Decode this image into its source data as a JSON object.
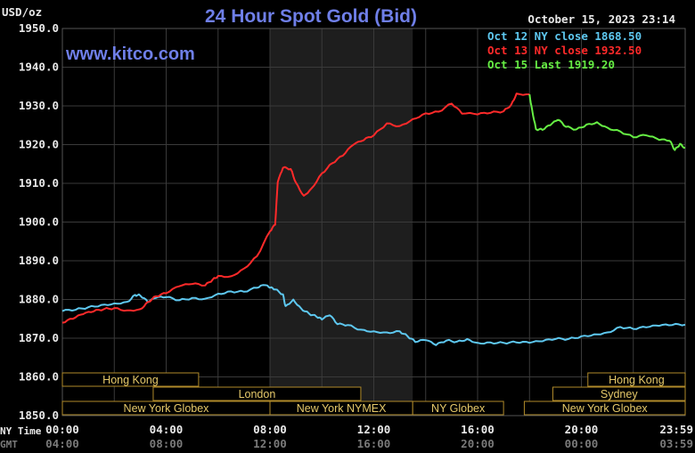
{
  "header": {
    "title": "24 Hour Spot Gold (Bid)",
    "unit": "USD/oz",
    "website": "www.kitco.com",
    "date": "October 15, 2023 23:14"
  },
  "legend": [
    {
      "text": "Oct 12 NY close 1868.50",
      "color": "#5ec8f0"
    },
    {
      "text": "Oct 13 NY close 1932.50",
      "color": "#ff2a2a"
    },
    {
      "text": "Oct 15 Last 1919.20",
      "color": "#66ee44"
    }
  ],
  "axis_labels": {
    "ny_time": "NY Time",
    "gmt": "GMT"
  },
  "sessions": [
    {
      "label": "Hong Kong",
      "row": 0,
      "x0": 0,
      "x1": 5.25
    },
    {
      "label": "Hong Kong",
      "row": 0,
      "x0": 20.25,
      "x1": 24
    },
    {
      "label": "London",
      "row": 1,
      "x0": 3.5,
      "x1": 11.5
    },
    {
      "label": "Sydney",
      "row": 1,
      "x0": 18.9,
      "x1": 24
    },
    {
      "label": "New York Globex",
      "row": 2,
      "x0": 0,
      "x1": 8
    },
    {
      "label": "New York NYMEX",
      "row": 2,
      "x0": 8,
      "x1": 13.5
    },
    {
      "label": "NY Globex",
      "row": 2,
      "x0": 13.5,
      "x1": 17
    },
    {
      "label": "New York Globex",
      "row": 2,
      "x0": 17.8,
      "x1": 24
    }
  ],
  "colors": {
    "background": "#000000",
    "grid": "#3a3a3a",
    "shade": "#1e1e1e",
    "session_border": "#b08a2a",
    "session_text": "#e6c96a"
  },
  "chart_data": {
    "type": "line",
    "title": "24 Hour Spot Gold (Bid)",
    "ylabel": "USD/oz",
    "ylim": [
      1850,
      1950
    ],
    "yticks": [
      "1850.0",
      "1860.0",
      "1870.0",
      "1880.0",
      "1890.0",
      "1900.0",
      "1910.0",
      "1920.0",
      "1930.0",
      "1940.0",
      "1950.0"
    ],
    "xlim": [
      0,
      24
    ],
    "xticks_ny": [
      "00:00",
      "04:00",
      "08:00",
      "12:00",
      "16:00",
      "20:00",
      "23:59"
    ],
    "xticks_gmt": [
      "04:00",
      "08:00",
      "12:00",
      "16:00",
      "20:00",
      "00:00",
      "03:59"
    ],
    "shaded_region_hours": [
      8,
      13.5
    ],
    "grid": true,
    "legend_position": "top-right",
    "series": [
      {
        "name": "Oct 12 NY close 1868.50",
        "color": "#5ec8f0",
        "points": [
          [
            0,
            1877.0
          ],
          [
            0.5,
            1877.3
          ],
          [
            1,
            1878.0
          ],
          [
            1.5,
            1878.6
          ],
          [
            2,
            1879.0
          ],
          [
            2.5,
            1879.4
          ],
          [
            2.8,
            1881.2
          ],
          [
            3,
            1881.0
          ],
          [
            3.3,
            1879.3
          ],
          [
            3.6,
            1880.4
          ],
          [
            4,
            1880.6
          ],
          [
            4.5,
            1879.8
          ],
          [
            5,
            1880.4
          ],
          [
            5.5,
            1880.2
          ],
          [
            6,
            1881.5
          ],
          [
            6.5,
            1882.1
          ],
          [
            7,
            1882.0
          ],
          [
            7.5,
            1883.0
          ],
          [
            7.8,
            1883.7
          ],
          [
            8,
            1883.0
          ],
          [
            8.2,
            1882.6
          ],
          [
            8.5,
            1881.3
          ],
          [
            8.6,
            1878.3
          ],
          [
            8.9,
            1880.0
          ],
          [
            9.2,
            1877.7
          ],
          [
            9.5,
            1876.4
          ],
          [
            9.8,
            1875.5
          ],
          [
            10,
            1874.8
          ],
          [
            10.3,
            1875.9
          ],
          [
            10.6,
            1873.6
          ],
          [
            11,
            1873.4
          ],
          [
            11.5,
            1872.2
          ],
          [
            12,
            1871.8
          ],
          [
            12.5,
            1871.5
          ],
          [
            13,
            1871.8
          ],
          [
            13.3,
            1870.5
          ],
          [
            13.6,
            1869.0
          ],
          [
            14,
            1869.5
          ],
          [
            14.4,
            1868.2
          ],
          [
            14.8,
            1869.4
          ],
          [
            15.2,
            1869.1
          ],
          [
            15.6,
            1869.8
          ],
          [
            16,
            1868.8
          ],
          [
            16.5,
            1868.9
          ],
          [
            17,
            1868.8
          ],
          [
            17.5,
            1868.9
          ],
          [
            18,
            1868.8
          ],
          [
            18.5,
            1869.2
          ],
          [
            19,
            1869.8
          ],
          [
            19.5,
            1869.8
          ],
          [
            20,
            1870.5
          ],
          [
            20.5,
            1871.0
          ],
          [
            21,
            1871.5
          ],
          [
            21.5,
            1872.9
          ],
          [
            22,
            1872.4
          ],
          [
            22.5,
            1872.8
          ],
          [
            23,
            1873.2
          ],
          [
            23.5,
            1873.4
          ],
          [
            24,
            1873.5
          ]
        ]
      },
      {
        "name": "Oct 13 NY close 1932.50",
        "color": "#ff2a2a",
        "points": [
          [
            0,
            1874.0
          ],
          [
            0.4,
            1875.0
          ],
          [
            0.8,
            1876.2
          ],
          [
            1.2,
            1876.9
          ],
          [
            1.6,
            1877.5
          ],
          [
            2,
            1877.8
          ],
          [
            2.5,
            1877.2
          ],
          [
            3,
            1877.5
          ],
          [
            3.3,
            1879.4
          ],
          [
            3.6,
            1880.8
          ],
          [
            4,
            1881.6
          ],
          [
            4.5,
            1883.4
          ],
          [
            5,
            1884.0
          ],
          [
            5.5,
            1883.6
          ],
          [
            5.8,
            1885.2
          ],
          [
            6,
            1886.1
          ],
          [
            6.5,
            1886.0
          ],
          [
            7,
            1888.0
          ],
          [
            7.5,
            1891.2
          ],
          [
            8,
            1897.6
          ],
          [
            8.2,
            1899.3
          ],
          [
            8.3,
            1910.3
          ],
          [
            8.5,
            1914.0
          ],
          [
            8.8,
            1913.7
          ],
          [
            9,
            1910.2
          ],
          [
            9.3,
            1906.8
          ],
          [
            9.6,
            1908.7
          ],
          [
            10,
            1912.6
          ],
          [
            10.4,
            1915.2
          ],
          [
            10.8,
            1917.1
          ],
          [
            11.2,
            1919.9
          ],
          [
            11.6,
            1921.1
          ],
          [
            12,
            1922.4
          ],
          [
            12.5,
            1925.5
          ],
          [
            13,
            1924.8
          ],
          [
            13.5,
            1926.6
          ],
          [
            14,
            1928.1
          ],
          [
            14.5,
            1928.5
          ],
          [
            15,
            1930.6
          ],
          [
            15.4,
            1928.0
          ],
          [
            16,
            1927.8
          ],
          [
            16.5,
            1928.2
          ],
          [
            17,
            1928.6
          ],
          [
            17.3,
            1930.4
          ],
          [
            17.5,
            1933.2
          ],
          [
            18,
            1933.0
          ]
        ]
      },
      {
        "name": "Oct 15 Last 1919.20",
        "color": "#66ee44",
        "points": [
          [
            18,
            1933.0
          ],
          [
            18.1,
            1929.0
          ],
          [
            18.25,
            1924.0
          ],
          [
            18.5,
            1923.8
          ],
          [
            18.8,
            1925.0
          ],
          [
            19.1,
            1926.4
          ],
          [
            19.4,
            1924.6
          ],
          [
            19.8,
            1923.9
          ],
          [
            20.2,
            1925.2
          ],
          [
            20.6,
            1925.8
          ],
          [
            21,
            1924.4
          ],
          [
            21.5,
            1923.4
          ],
          [
            22,
            1921.9
          ],
          [
            22.5,
            1922.4
          ],
          [
            23,
            1921.2
          ],
          [
            23.4,
            1921.0
          ],
          [
            23.6,
            1918.6
          ],
          [
            23.8,
            1920.2
          ],
          [
            24,
            1919.2
          ]
        ]
      }
    ]
  }
}
